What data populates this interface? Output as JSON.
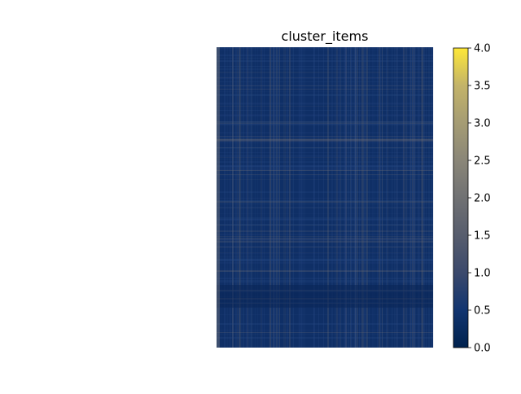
{
  "chart_data": {
    "type": "heatmap",
    "title": "cluster_items",
    "xlabel": "",
    "ylabel": "",
    "colorbar": {
      "colormap": "cividis",
      "range": [
        0.0,
        4.0
      ],
      "ticks": [
        0.0,
        0.5,
        1.0,
        1.5,
        2.0,
        2.5,
        3.0,
        3.5,
        4.0
      ],
      "tick_labels": [
        "0.0",
        "0.5",
        "1.0",
        "1.5",
        "2.0",
        "2.5",
        "3.0",
        "3.5",
        "4.0"
      ]
    },
    "axes_visible": false,
    "grid": false,
    "value_summary": {
      "typical_value_range": [
        0.0,
        1.0
      ],
      "dominant_value": 0.2
    }
  }
}
